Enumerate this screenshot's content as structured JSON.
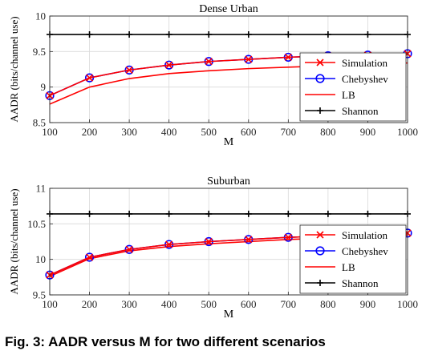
{
  "chart_data": [
    {
      "type": "line",
      "title": "Dense Urban",
      "xlabel": "M",
      "ylabel": "AADR (bits/channel use)",
      "x": [
        100,
        200,
        300,
        400,
        500,
        600,
        700,
        800,
        900,
        1000
      ],
      "xlim": [
        100,
        1000
      ],
      "ylim": [
        8.5,
        10
      ],
      "xticks": [
        "100",
        "200",
        "300",
        "400",
        "500",
        "600",
        "700",
        "800",
        "900",
        "1000"
      ],
      "yticks": [
        "8.5",
        "9",
        "9.5",
        "10"
      ],
      "grid": true,
      "legend_position": "bottom-right",
      "series": [
        {
          "name": "Simulation",
          "color": "#ff0000",
          "marker": "x",
          "values": [
            8.88,
            9.13,
            9.24,
            9.31,
            9.36,
            9.39,
            9.42,
            9.44,
            9.45,
            9.47
          ]
        },
        {
          "name": "Chebyshev",
          "color": "#0000ff",
          "marker": "o",
          "values": [
            8.88,
            9.13,
            9.24,
            9.31,
            9.36,
            9.39,
            9.42,
            9.44,
            9.45,
            9.47
          ]
        },
        {
          "name": "LB",
          "color": "#ff0000",
          "marker": "none",
          "values": [
            8.76,
            9.0,
            9.12,
            9.19,
            9.23,
            9.26,
            9.28,
            9.3,
            9.32,
            9.34
          ]
        },
        {
          "name": "Shannon",
          "color": "#000000",
          "marker": "+",
          "values": [
            9.74,
            9.74,
            9.74,
            9.74,
            9.74,
            9.74,
            9.74,
            9.74,
            9.74,
            9.74
          ]
        }
      ]
    },
    {
      "type": "line",
      "title": "Suburban",
      "xlabel": "M",
      "ylabel": "AADR (bits/channel use)",
      "x": [
        100,
        200,
        300,
        400,
        500,
        600,
        700,
        800,
        900,
        1000
      ],
      "xlim": [
        100,
        1000
      ],
      "ylim": [
        9.5,
        11
      ],
      "xticks": [
        "100",
        "200",
        "300",
        "400",
        "500",
        "600",
        "700",
        "800",
        "900",
        "1000"
      ],
      "yticks": [
        "9.5",
        "10",
        "10.5",
        "11"
      ],
      "grid": true,
      "legend_position": "bottom-right",
      "series": [
        {
          "name": "Simulation",
          "color": "#ff0000",
          "marker": "x",
          "values": [
            9.78,
            10.03,
            10.14,
            10.21,
            10.25,
            10.28,
            10.31,
            10.33,
            10.35,
            10.37
          ]
        },
        {
          "name": "Chebyshev",
          "color": "#0000ff",
          "marker": "o",
          "values": [
            9.78,
            10.03,
            10.14,
            10.21,
            10.25,
            10.28,
            10.31,
            10.33,
            10.35,
            10.37
          ]
        },
        {
          "name": "LB",
          "color": "#ff0000",
          "marker": "none",
          "values": [
            9.76,
            10.01,
            10.12,
            10.18,
            10.22,
            10.25,
            10.28,
            10.3,
            10.32,
            10.34
          ]
        },
        {
          "name": "Shannon",
          "color": "#000000",
          "marker": "+",
          "values": [
            10.64,
            10.64,
            10.64,
            10.64,
            10.64,
            10.64,
            10.64,
            10.64,
            10.64,
            10.64
          ]
        }
      ]
    }
  ],
  "caption": "Fig. 3: AADR versus M for two different scenarios"
}
